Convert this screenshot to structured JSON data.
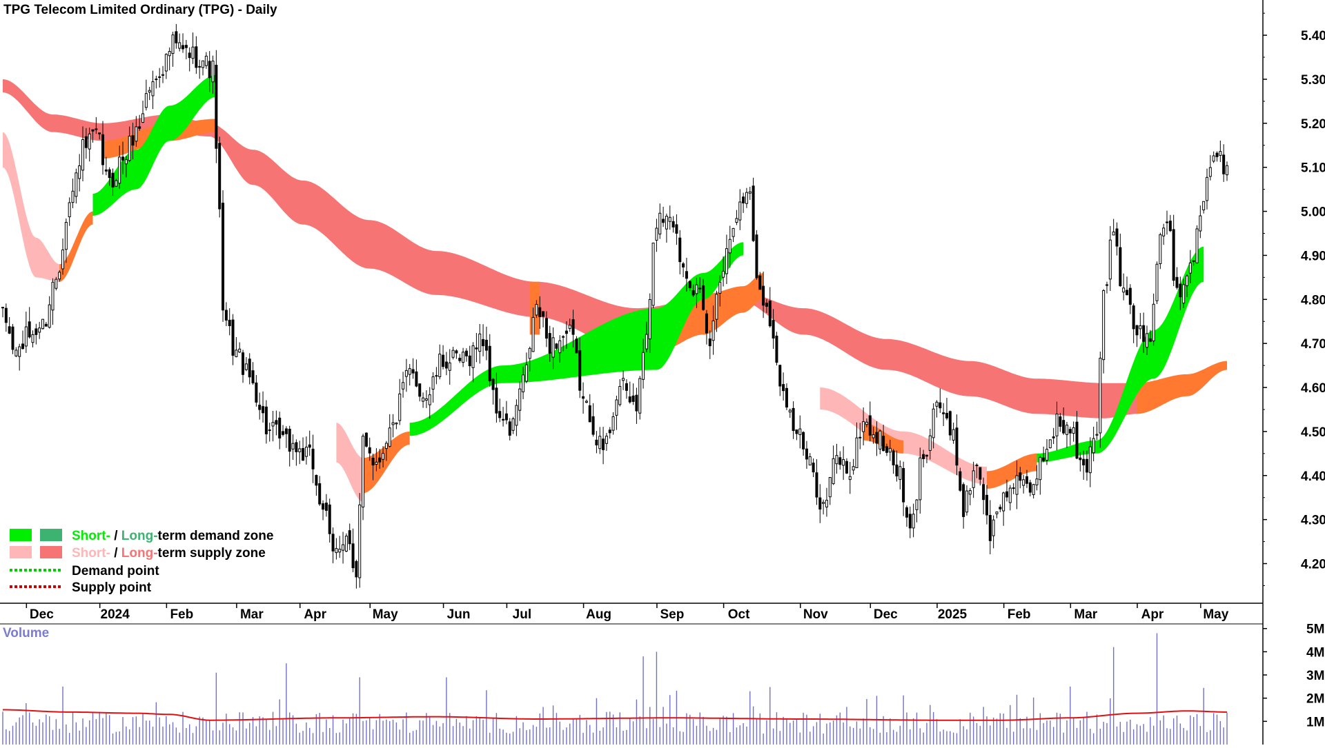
{
  "title": "TPG Telecom Limited Ordinary (TPG) - Daily",
  "volume_label": "Volume",
  "legend": {
    "demand_zone": {
      "short": "Short-",
      "sep": " / ",
      "long": "Long-",
      "rest": "term demand zone"
    },
    "supply_zone": {
      "short": "Short-",
      "sep": " / ",
      "long": "Long-",
      "rest": "term supply zone"
    },
    "demand_point": "Demand point",
    "supply_point": "Supply point"
  },
  "colors": {
    "short_demand": "#00ee00",
    "long_demand": "#3cb371",
    "short_supply": "#ffb6b6",
    "long_supply": "#f77474",
    "transition": "#ff7a30",
    "candle": "#000000",
    "volume_bar": "#7070c8",
    "volume_avg": "#e01010",
    "axis_text": "#000000",
    "volume_text": "#7b7bd0",
    "demand_point": "#00cc00",
    "supply_point": "#cc0000"
  },
  "chart_data": [
    {
      "type": "candlestick",
      "title": "TPG Telecom Limited Ordinary (TPG) - Daily",
      "x_ticks": [
        {
          "label": "Dec",
          "index": 10
        },
        {
          "label": "2024",
          "index": 32
        },
        {
          "label": "Feb",
          "index": 52
        },
        {
          "label": "Mar",
          "index": 73
        },
        {
          "label": "Apr",
          "index": 92
        },
        {
          "label": "May",
          "index": 113
        },
        {
          "label": "Jun",
          "index": 135
        },
        {
          "label": "Jul",
          "index": 154
        },
        {
          "label": "Aug",
          "index": 177
        },
        {
          "label": "Sep",
          "index": 199
        },
        {
          "label": "Oct",
          "index": 219
        },
        {
          "label": "Nov",
          "index": 242
        },
        {
          "label": "Dec",
          "index": 263
        },
        {
          "label": "2025",
          "index": 283
        },
        {
          "label": "Feb",
          "index": 303
        },
        {
          "label": "Mar",
          "index": 323
        },
        {
          "label": "Apr",
          "index": 343
        },
        {
          "label": "May",
          "index": 362
        }
      ],
      "y_ticks": [
        4.2,
        4.3,
        4.4,
        4.5,
        4.6,
        4.7,
        4.8,
        4.9,
        5.0,
        5.1,
        5.2,
        5.3,
        5.4
      ],
      "ylim": [
        4.11,
        5.48
      ],
      "n_days": 368,
      "anchors": [
        [
          0,
          4.76
        ],
        [
          4,
          4.68
        ],
        [
          8,
          4.72
        ],
        [
          12,
          4.74
        ],
        [
          16,
          4.85
        ],
        [
          20,
          5.02
        ],
        [
          24,
          5.14
        ],
        [
          28,
          5.17
        ],
        [
          32,
          5.06
        ],
        [
          36,
          5.12
        ],
        [
          40,
          5.18
        ],
        [
          44,
          5.28
        ],
        [
          48,
          5.33
        ],
        [
          51,
          5.38
        ],
        [
          55,
          5.36
        ],
        [
          59,
          5.35
        ],
        [
          63,
          5.32
        ],
        [
          65,
          4.99
        ],
        [
          66,
          4.76
        ],
        [
          70,
          4.68
        ],
        [
          74,
          4.62
        ],
        [
          80,
          4.5
        ],
        [
          86,
          4.47
        ],
        [
          92,
          4.44
        ],
        [
          96,
          4.33
        ],
        [
          99,
          4.22
        ],
        [
          103,
          4.27
        ],
        [
          106,
          4.15
        ],
        [
          108,
          4.49
        ],
        [
          112,
          4.43
        ],
        [
          116,
          4.5
        ],
        [
          122,
          4.63
        ],
        [
          127,
          4.58
        ],
        [
          132,
          4.66
        ],
        [
          138,
          4.66
        ],
        [
          144,
          4.71
        ],
        [
          148,
          4.55
        ],
        [
          152,
          4.5
        ],
        [
          156,
          4.61
        ],
        [
          160,
          4.78
        ],
        [
          164,
          4.7
        ],
        [
          170,
          4.72
        ],
        [
          175,
          4.55
        ],
        [
          180,
          4.46
        ],
        [
          185,
          4.6
        ],
        [
          190,
          4.56
        ],
        [
          193,
          4.72
        ],
        [
          196,
          4.98
        ],
        [
          200,
          5.0
        ],
        [
          204,
          4.88
        ],
        [
          208,
          4.82
        ],
        [
          212,
          4.7
        ],
        [
          215,
          4.86
        ],
        [
          220,
          5.0
        ],
        [
          224,
          5.05
        ],
        [
          226,
          4.84
        ],
        [
          229,
          4.79
        ],
        [
          233,
          4.62
        ],
        [
          238,
          4.5
        ],
        [
          242,
          4.42
        ],
        [
          246,
          4.33
        ],
        [
          250,
          4.44
        ],
        [
          254,
          4.41
        ],
        [
          258,
          4.52
        ],
        [
          263,
          4.48
        ],
        [
          268,
          4.42
        ],
        [
          272,
          4.27
        ],
        [
          276,
          4.45
        ],
        [
          280,
          4.57
        ],
        [
          285,
          4.48
        ],
        [
          288,
          4.33
        ],
        [
          292,
          4.43
        ],
        [
          296,
          4.27
        ],
        [
          300,
          4.35
        ],
        [
          304,
          4.4
        ],
        [
          308,
          4.35
        ],
        [
          312,
          4.45
        ],
        [
          316,
          4.52
        ],
        [
          320,
          4.5
        ],
        [
          324,
          4.41
        ],
        [
          328,
          4.51
        ],
        [
          330,
          4.82
        ],
        [
          333,
          4.95
        ],
        [
          336,
          4.81
        ],
        [
          340,
          4.73
        ],
        [
          344,
          4.7
        ],
        [
          346,
          4.9
        ],
        [
          349,
          4.99
        ],
        [
          352,
          4.82
        ],
        [
          356,
          4.88
        ],
        [
          359,
          5.0
        ],
        [
          362,
          5.1
        ],
        [
          364,
          5.12
        ],
        [
          367,
          5.1
        ]
      ],
      "zones": {
        "long_supply_upper": [
          [
            0,
            5.3
          ],
          [
            15,
            5.22
          ],
          [
            30,
            5.2
          ],
          [
            50,
            5.22
          ],
          [
            62,
            5.2
          ],
          [
            75,
            5.14
          ],
          [
            90,
            5.07
          ],
          [
            110,
            4.98
          ],
          [
            130,
            4.91
          ],
          [
            160,
            4.84
          ],
          [
            190,
            4.78
          ],
          [
            220,
            4.82
          ],
          [
            240,
            4.78
          ],
          [
            265,
            4.71
          ],
          [
            290,
            4.66
          ],
          [
            310,
            4.62
          ],
          [
            330,
            4.61
          ],
          [
            340,
            4.61
          ]
        ],
        "long_supply_lower": [
          [
            0,
            5.27
          ],
          [
            15,
            5.18
          ],
          [
            30,
            5.16
          ],
          [
            50,
            5.18
          ],
          [
            62,
            5.17
          ],
          [
            75,
            5.06
          ],
          [
            90,
            4.97
          ],
          [
            110,
            4.87
          ],
          [
            130,
            4.81
          ],
          [
            160,
            4.76
          ],
          [
            190,
            4.68
          ],
          [
            220,
            4.8
          ],
          [
            240,
            4.72
          ],
          [
            265,
            4.64
          ],
          [
            290,
            4.58
          ],
          [
            310,
            4.54
          ],
          [
            330,
            4.53
          ],
          [
            340,
            4.54
          ]
        ],
        "short_supply_upper": [
          [
            0,
            5.18
          ],
          [
            10,
            4.94
          ],
          [
            17,
            4.88
          ],
          [
            65,
            5.18
          ],
          [
            80,
            4.88
          ],
          [
            100,
            4.52
          ],
          [
            108,
            4.44
          ],
          [
            228,
            4.88
          ],
          [
            245,
            4.6
          ],
          [
            270,
            4.5
          ],
          [
            295,
            4.42
          ]
        ],
        "short_supply_lower": [
          [
            0,
            5.1
          ],
          [
            10,
            4.85
          ],
          [
            17,
            4.84
          ],
          [
            65,
            5.17
          ],
          [
            80,
            4.8
          ],
          [
            100,
            4.43
          ],
          [
            108,
            4.34
          ],
          [
            228,
            4.82
          ],
          [
            245,
            4.55
          ],
          [
            270,
            4.45
          ],
          [
            295,
            4.38
          ]
        ],
        "short_demand_upper": [
          [
            27,
            5.04
          ],
          [
            40,
            5.14
          ],
          [
            50,
            5.24
          ],
          [
            64,
            5.31
          ],
          [
            122,
            4.52
          ],
          [
            150,
            4.65
          ],
          [
            196,
            4.78
          ],
          [
            210,
            4.86
          ],
          [
            222,
            4.93
          ],
          [
            310,
            4.45
          ],
          [
            328,
            4.48
          ],
          [
            345,
            4.73
          ],
          [
            360,
            4.92
          ]
        ],
        "short_demand_lower": [
          [
            27,
            4.99
          ],
          [
            40,
            5.05
          ],
          [
            50,
            5.16
          ],
          [
            64,
            5.26
          ],
          [
            122,
            4.49
          ],
          [
            150,
            4.61
          ],
          [
            196,
            4.64
          ],
          [
            210,
            4.8
          ],
          [
            222,
            4.9
          ],
          [
            310,
            4.43
          ],
          [
            328,
            4.45
          ],
          [
            345,
            4.62
          ],
          [
            360,
            4.84
          ]
        ],
        "transition_bands": [
          {
            "upper": [
              [
                17,
                4.88
              ],
              [
                27,
                5.0
              ]
            ],
            "lower": [
              [
                17,
                4.84
              ],
              [
                27,
                4.97
              ]
            ]
          },
          {
            "upper": [
              [
                30,
                5.16
              ],
              [
                50,
                5.2
              ],
              [
                64,
                5.21
              ]
            ],
            "lower": [
              [
                30,
                5.12
              ],
              [
                50,
                5.16
              ],
              [
                64,
                5.18
              ]
            ]
          },
          {
            "upper": [
              [
                108,
                4.44
              ],
              [
                122,
                4.5
              ]
            ],
            "lower": [
              [
                108,
                4.36
              ],
              [
                122,
                4.47
              ]
            ]
          },
          {
            "upper": [
              [
                158,
                4.84
              ],
              [
                161,
                4.84
              ]
            ],
            "lower": [
              [
                158,
                4.72
              ],
              [
                161,
                4.72
              ]
            ]
          },
          {
            "upper": [
              [
                196,
                4.77
              ],
              [
                210,
                4.81
              ],
              [
                222,
                4.83
              ],
              [
                228,
                4.86
              ]
            ],
            "lower": [
              [
                196,
                4.68
              ],
              [
                210,
                4.72
              ],
              [
                222,
                4.77
              ],
              [
                228,
                4.8
              ]
            ]
          },
          {
            "upper": [
              [
                258,
                4.52
              ],
              [
                270,
                4.48
              ]
            ],
            "lower": [
              [
                258,
                4.48
              ],
              [
                270,
                4.45
              ]
            ]
          },
          {
            "upper": [
              [
                295,
                4.41
              ],
              [
                310,
                4.45
              ]
            ],
            "lower": [
              [
                295,
                4.37
              ],
              [
                310,
                4.41
              ]
            ]
          },
          {
            "upper": [
              [
                340,
                4.61
              ],
              [
                355,
                4.63
              ],
              [
                367,
                4.66
              ]
            ],
            "lower": [
              [
                340,
                4.54
              ],
              [
                355,
                4.58
              ],
              [
                367,
                4.64
              ]
            ]
          }
        ]
      }
    },
    {
      "type": "bar",
      "title": "Volume",
      "y_ticks": [
        {
          "label": "1M",
          "value": 1000000
        },
        {
          "label": "2M",
          "value": 2000000
        },
        {
          "label": "3M",
          "value": 3000000
        },
        {
          "label": "4M",
          "value": 4000000
        },
        {
          "label": "5M",
          "value": 5000000
        }
      ],
      "ylim": [
        0,
        5200000
      ],
      "baseline": 1050000,
      "average": [
        [
          0,
          1500000
        ],
        [
          20,
          1400000
        ],
        [
          40,
          1350000
        ],
        [
          50,
          1300000
        ],
        [
          62,
          1050000
        ],
        [
          100,
          1150000
        ],
        [
          130,
          1200000
        ],
        [
          160,
          1100000
        ],
        [
          200,
          1150000
        ],
        [
          240,
          1100000
        ],
        [
          280,
          1050000
        ],
        [
          300,
          1050000
        ],
        [
          320,
          1150000
        ],
        [
          340,
          1350000
        ],
        [
          355,
          1450000
        ],
        [
          367,
          1400000
        ]
      ],
      "spikes": [
        [
          18,
          2500000
        ],
        [
          64,
          3100000
        ],
        [
          85,
          3500000
        ],
        [
          107,
          2900000
        ],
        [
          133,
          2900000
        ],
        [
          178,
          2000000
        ],
        [
          192,
          3800000
        ],
        [
          196,
          4000000
        ],
        [
          224,
          2300000
        ],
        [
          262,
          2100000
        ],
        [
          302,
          1700000
        ],
        [
          320,
          2500000
        ],
        [
          333,
          4200000
        ],
        [
          346,
          4800000
        ]
      ]
    }
  ]
}
